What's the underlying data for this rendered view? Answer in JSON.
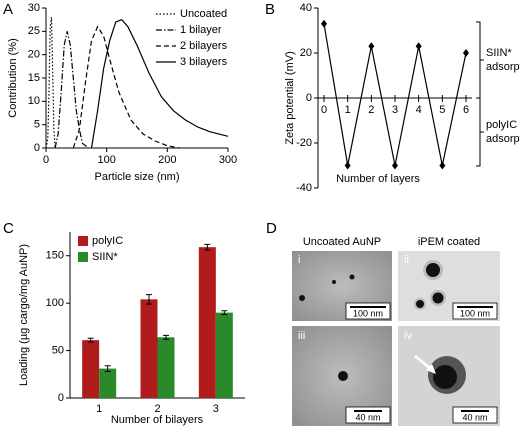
{
  "chart_data": [
    {
      "type": "line",
      "panel": "A",
      "xlabel": "Particle size (nm)",
      "ylabel": "Contribution (%)",
      "xlim": [
        0,
        300
      ],
      "xticks": [
        0,
        100,
        200,
        300
      ],
      "ylim": [
        0,
        30
      ],
      "yticks": [
        0,
        5,
        10,
        15,
        20,
        25,
        30
      ],
      "legend": "top-right",
      "series": [
        {
          "name": "Uncoated",
          "color": "#000000",
          "linestyle": "dotted",
          "x": [
            0,
            3,
            5,
            7,
            9,
            11,
            13,
            15
          ],
          "values": [
            0,
            2,
            12,
            26,
            28,
            16,
            4,
            0
          ]
        },
        {
          "name": "1 bilayer",
          "color": "#000000",
          "linestyle": "dashdot",
          "x": [
            15,
            20,
            25,
            30,
            35,
            40,
            45,
            50,
            55,
            60,
            70
          ],
          "values": [
            0,
            3,
            12,
            22,
            25,
            22,
            15,
            8,
            4,
            1,
            0
          ]
        },
        {
          "name": "2 bilayers",
          "color": "#000000",
          "linestyle": "dashed",
          "x": [
            45,
            55,
            65,
            75,
            85,
            95,
            105,
            120,
            140,
            160,
            180,
            200,
            220
          ],
          "values": [
            0,
            4,
            14,
            23,
            26,
            24,
            19,
            12,
            6,
            3,
            1.5,
            0.5,
            0
          ]
        },
        {
          "name": "3 bilayers",
          "color": "#000000",
          "linestyle": "solid",
          "x": [
            75,
            85,
            95,
            105,
            115,
            125,
            135,
            150,
            170,
            190,
            210,
            230,
            250,
            270,
            300
          ],
          "values": [
            0,
            8,
            17,
            23,
            27,
            27.5,
            26,
            22,
            16,
            11,
            8,
            6,
            4.5,
            3.5,
            2.5
          ]
        }
      ]
    },
    {
      "type": "line",
      "panel": "B",
      "xlabel": "Number of layers",
      "ylabel": "Zeta potential (mV)",
      "x": [
        0,
        1,
        2,
        3,
        4,
        5,
        6
      ],
      "xlim": [
        0,
        6
      ],
      "xticks": [
        0,
        1,
        2,
        3,
        4,
        5,
        6
      ],
      "ylim": [
        -40,
        40
      ],
      "yticks": [
        -40,
        -20,
        0,
        20,
        40
      ],
      "marker": "diamond",
      "series": [
        {
          "color": "#000000",
          "linestyle": "solid",
          "values": [
            33,
            -30,
            23,
            -30,
            23,
            -30,
            20
          ]
        }
      ],
      "annotations": [
        [
          "SIIN*",
          "adsorption"
        ],
        [
          "polyIC",
          "adsorption"
        ]
      ]
    },
    {
      "type": "bar",
      "panel": "C",
      "xlabel": "Number of bilayers",
      "ylabel": "Loading (µg cargo/mg AuNP)",
      "categories": [
        "1",
        "2",
        "3"
      ],
      "ylim": [
        0,
        175
      ],
      "yticks": [
        0,
        50,
        100,
        150
      ],
      "legend": "top-left",
      "series": [
        {
          "name": "polyIC",
          "color": "#b01c1c",
          "values": [
            61,
            104,
            159
          ],
          "errors": [
            2,
            5,
            3
          ]
        },
        {
          "name": "SIIN*",
          "color": "#2a8a2a",
          "values": [
            31,
            64,
            90
          ],
          "errors": [
            3,
            2,
            2
          ]
        }
      ]
    }
  ],
  "panel_d": {
    "panel": "D",
    "columns": [
      "Uncoated AuNP",
      "iPEM coated"
    ],
    "images": [
      {
        "label": "i",
        "scale": "100 nm"
      },
      {
        "label": "ii",
        "scale": "100 nm"
      },
      {
        "label": "iii",
        "scale": "40 nm"
      },
      {
        "label": "iv",
        "scale": "40 nm"
      }
    ]
  }
}
